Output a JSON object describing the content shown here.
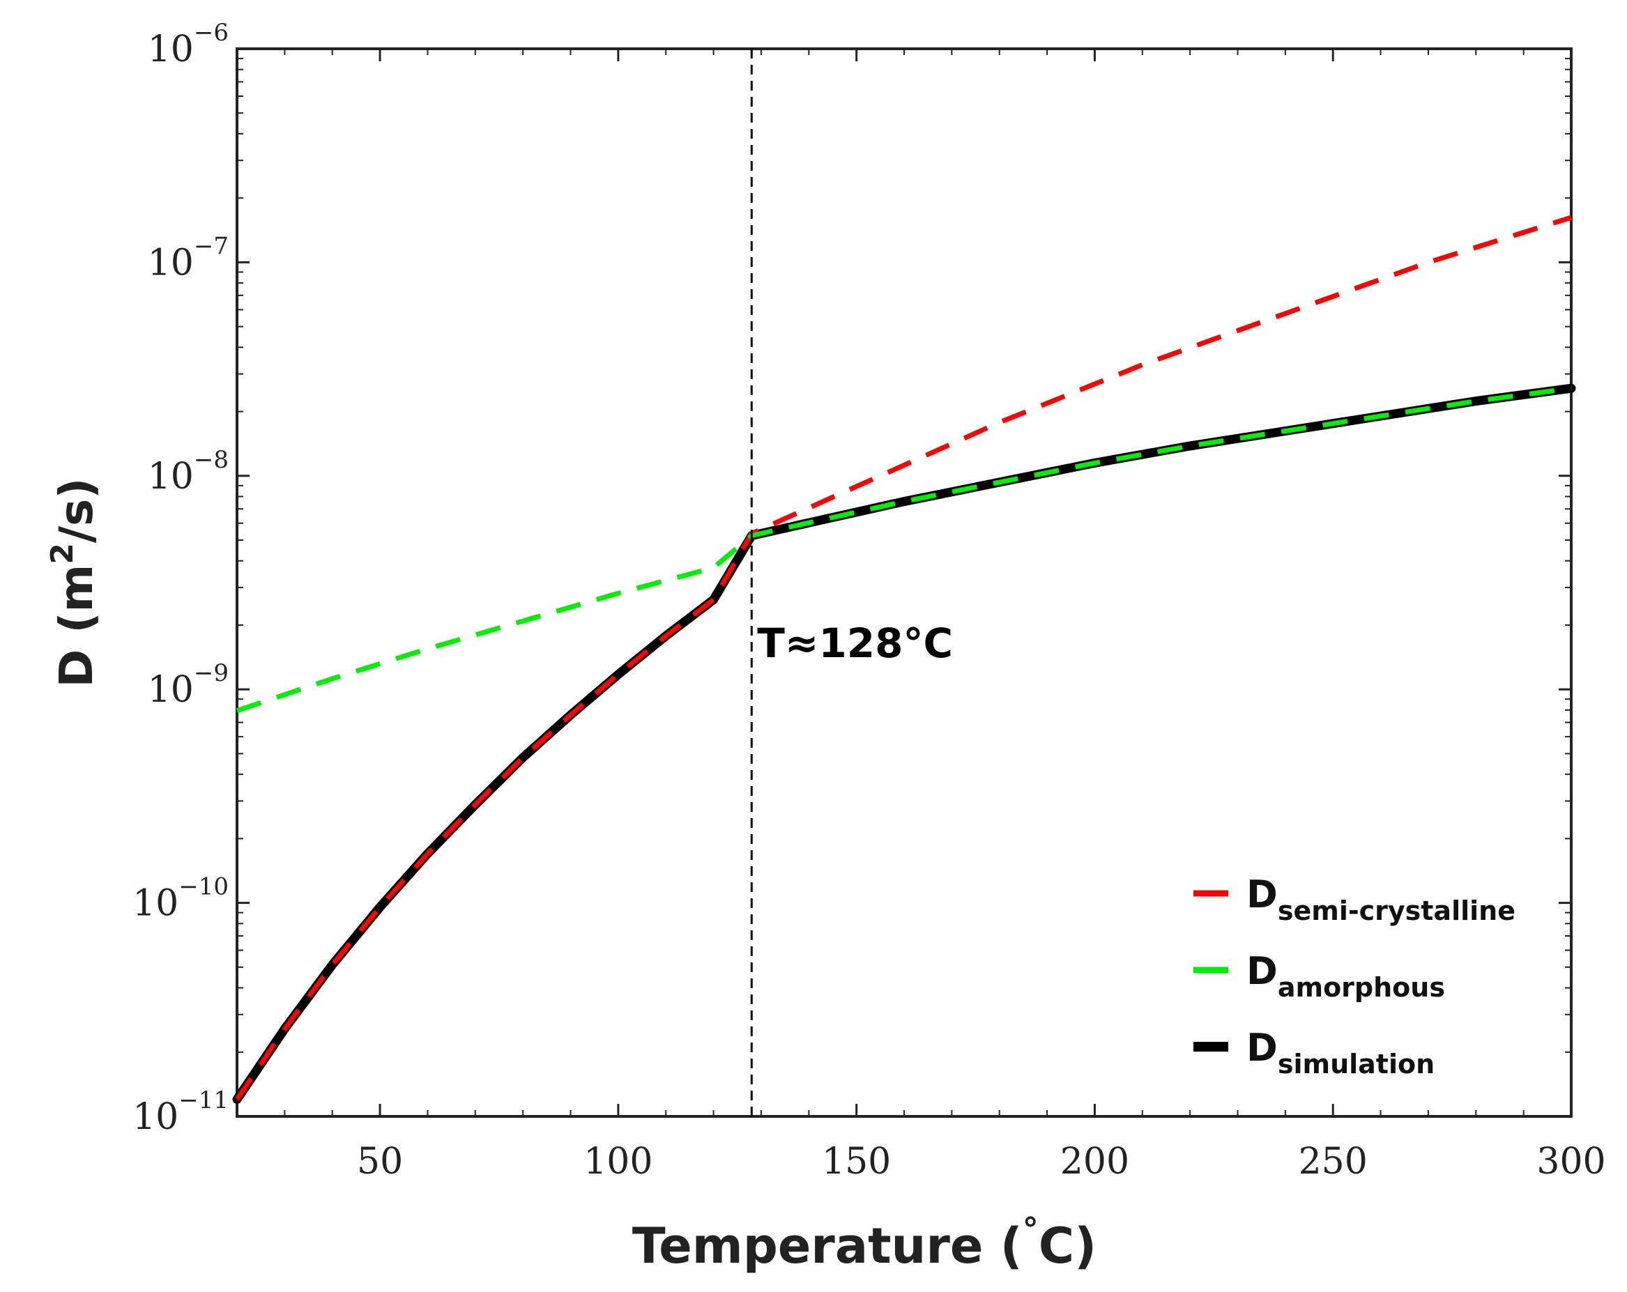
{
  "chart_data": {
    "type": "line",
    "title": "",
    "xlabel": "Temperature",
    "xlabel_unit": "C",
    "xlabel_unit_degree": "°",
    "ylabel_symbol": "D",
    "ylabel_unit_base": "m",
    "ylabel_unit_exp": "2",
    "ylabel_unit_tail": "/s",
    "xlim": [
      20,
      300
    ],
    "ylim_log10": [
      -11,
      -6
    ],
    "y_scale": "log",
    "grid": false,
    "x_ticks": [
      50,
      100,
      150,
      200,
      250,
      300
    ],
    "y_ticks": [
      {
        "base": "10",
        "exp": "−11",
        "log": -11
      },
      {
        "base": "10",
        "exp": "−10",
        "log": -10
      },
      {
        "base": "10",
        "exp": "−9",
        "log": -9
      },
      {
        "base": "10",
        "exp": "−8",
        "log": -8
      },
      {
        "base": "10",
        "exp": "−7",
        "log": -7
      },
      {
        "base": "10",
        "exp": "−6",
        "log": -6
      }
    ],
    "vertical_line": {
      "x": 128,
      "style": "dashed",
      "color": "#000000"
    },
    "annotation": {
      "text": "T≈128°C",
      "x": 128,
      "log_y": -8.85
    },
    "legend_position": "bottom-right",
    "series": [
      {
        "name": "D_semi-crystalline",
        "label_main": "D",
        "label_sub": "semi-crystalline",
        "color": "#ff0000",
        "style": "dashed",
        "x": [
          20,
          30,
          40,
          50,
          60,
          70,
          80,
          90,
          100,
          110,
          120,
          128,
          140,
          150,
          160,
          170,
          180,
          190,
          200,
          210,
          220,
          230,
          240,
          250,
          260,
          270,
          280,
          290,
          300
        ],
        "log_y": [
          -10.92,
          -10.59,
          -10.29,
          -10.02,
          -9.77,
          -9.54,
          -9.32,
          -9.12,
          -8.93,
          -8.75,
          -8.58,
          -8.27,
          -8.15,
          -8.05,
          -7.95,
          -7.85,
          -7.75,
          -7.66,
          -7.57,
          -7.48,
          -7.4,
          -7.32,
          -7.24,
          -7.16,
          -7.08,
          -7.0,
          -6.93,
          -6.86,
          -6.79
        ]
      },
      {
        "name": "D_amorphous",
        "label_main": "D",
        "label_sub": "amorphous",
        "color": "#00ee00",
        "style": "dashed",
        "x": [
          20,
          40,
          60,
          80,
          100,
          120,
          128,
          140,
          160,
          180,
          200,
          220,
          240,
          260,
          280,
          300
        ],
        "log_y": [
          -9.1,
          -8.95,
          -8.81,
          -8.68,
          -8.55,
          -8.43,
          -8.28,
          -8.22,
          -8.12,
          -8.03,
          -7.94,
          -7.86,
          -7.79,
          -7.72,
          -7.65,
          -7.59
        ]
      },
      {
        "name": "D_simulation",
        "label_main": "D",
        "label_sub": "simulation",
        "color": "#000000",
        "style": "solid",
        "x": [
          20,
          30,
          40,
          50,
          60,
          70,
          80,
          90,
          100,
          110,
          120,
          128,
          140,
          160,
          180,
          200,
          220,
          240,
          260,
          280,
          300
        ],
        "log_y": [
          -10.92,
          -10.59,
          -10.29,
          -10.02,
          -9.77,
          -9.54,
          -9.32,
          -9.12,
          -8.93,
          -8.75,
          -8.58,
          -8.28,
          -8.22,
          -8.12,
          -8.03,
          -7.94,
          -7.86,
          -7.79,
          -7.72,
          -7.65,
          -7.59
        ]
      }
    ]
  }
}
